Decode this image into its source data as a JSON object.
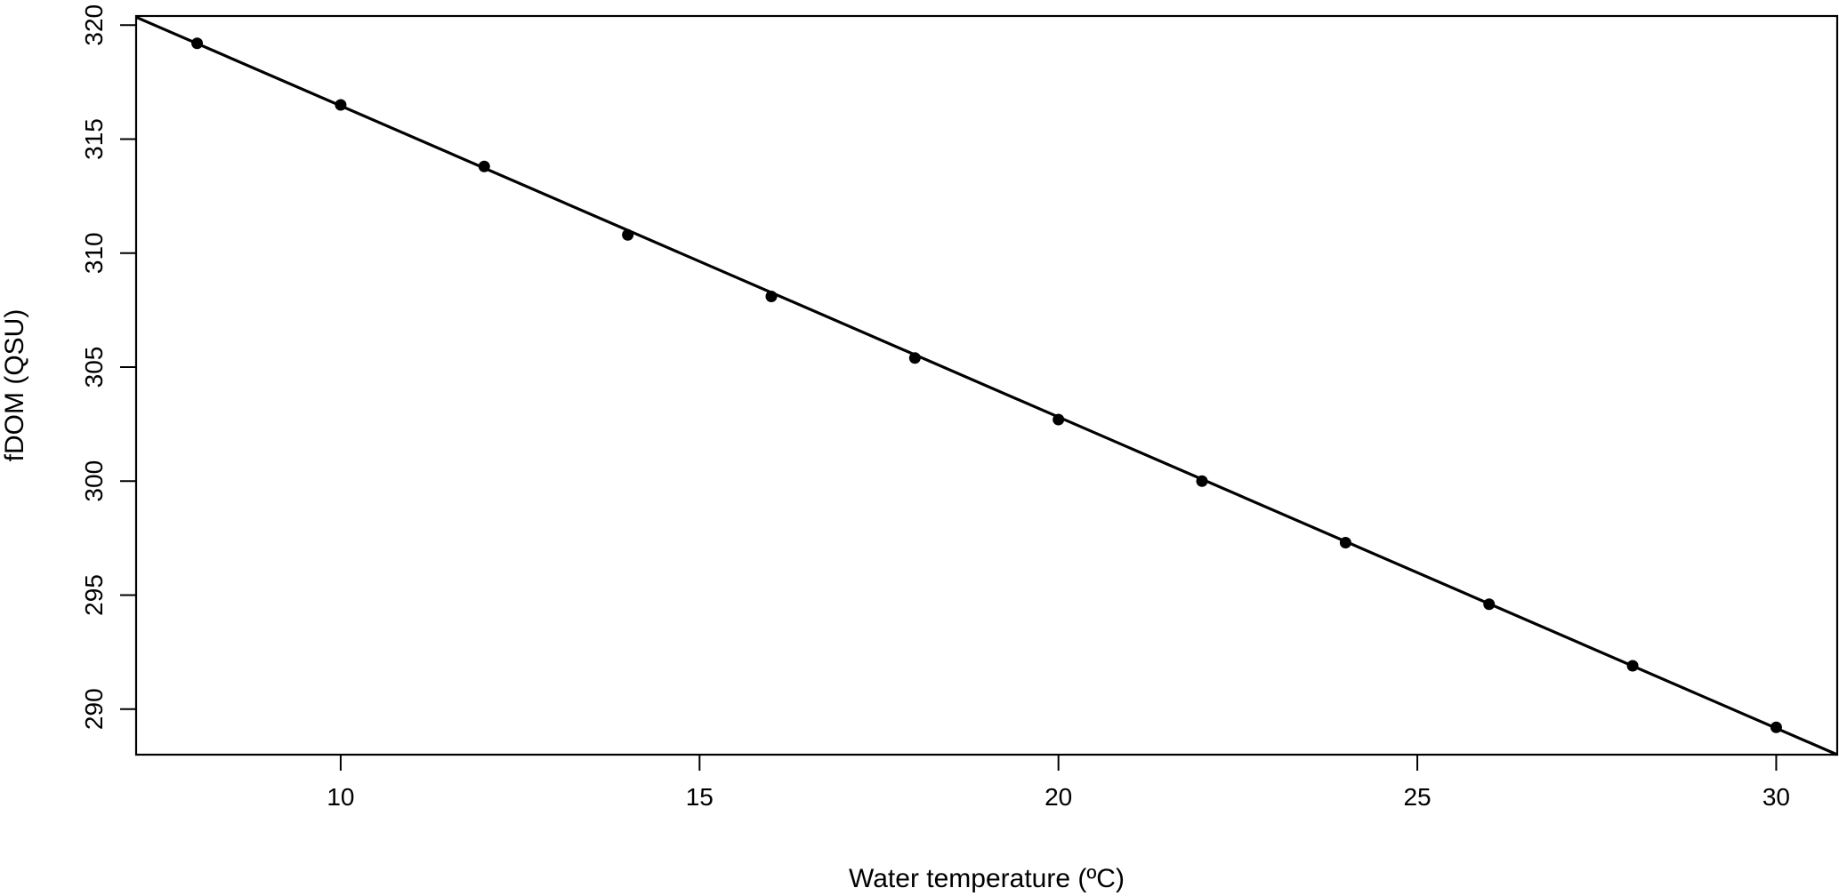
{
  "chart_data": {
    "type": "scatter",
    "title": "",
    "xlabel": "Water temperature (ºC)",
    "ylabel": "fDOM (QSU)",
    "xlim": [
      7.15,
      30.85
    ],
    "ylim": [
      288,
      320.4
    ],
    "xticks": [
      10,
      15,
      20,
      25,
      30
    ],
    "yticks": [
      290,
      295,
      300,
      305,
      310,
      315,
      320
    ],
    "grid": false,
    "legend": "none",
    "series": [
      {
        "x": [
          8,
          10,
          12,
          14,
          16,
          18,
          20,
          22,
          24,
          26,
          28,
          30
        ],
        "y": [
          319.2,
          316.5,
          313.8,
          310.8,
          308.1,
          305.4,
          302.7,
          300.0,
          297.3,
          294.6,
          291.9,
          289.2
        ],
        "marker": "filled-circle",
        "color": "#000000"
      }
    ],
    "fit_line": {
      "x": [
        7.15,
        30.85
      ],
      "y": [
        320.35,
        288.0
      ],
      "color": "#000000"
    }
  }
}
